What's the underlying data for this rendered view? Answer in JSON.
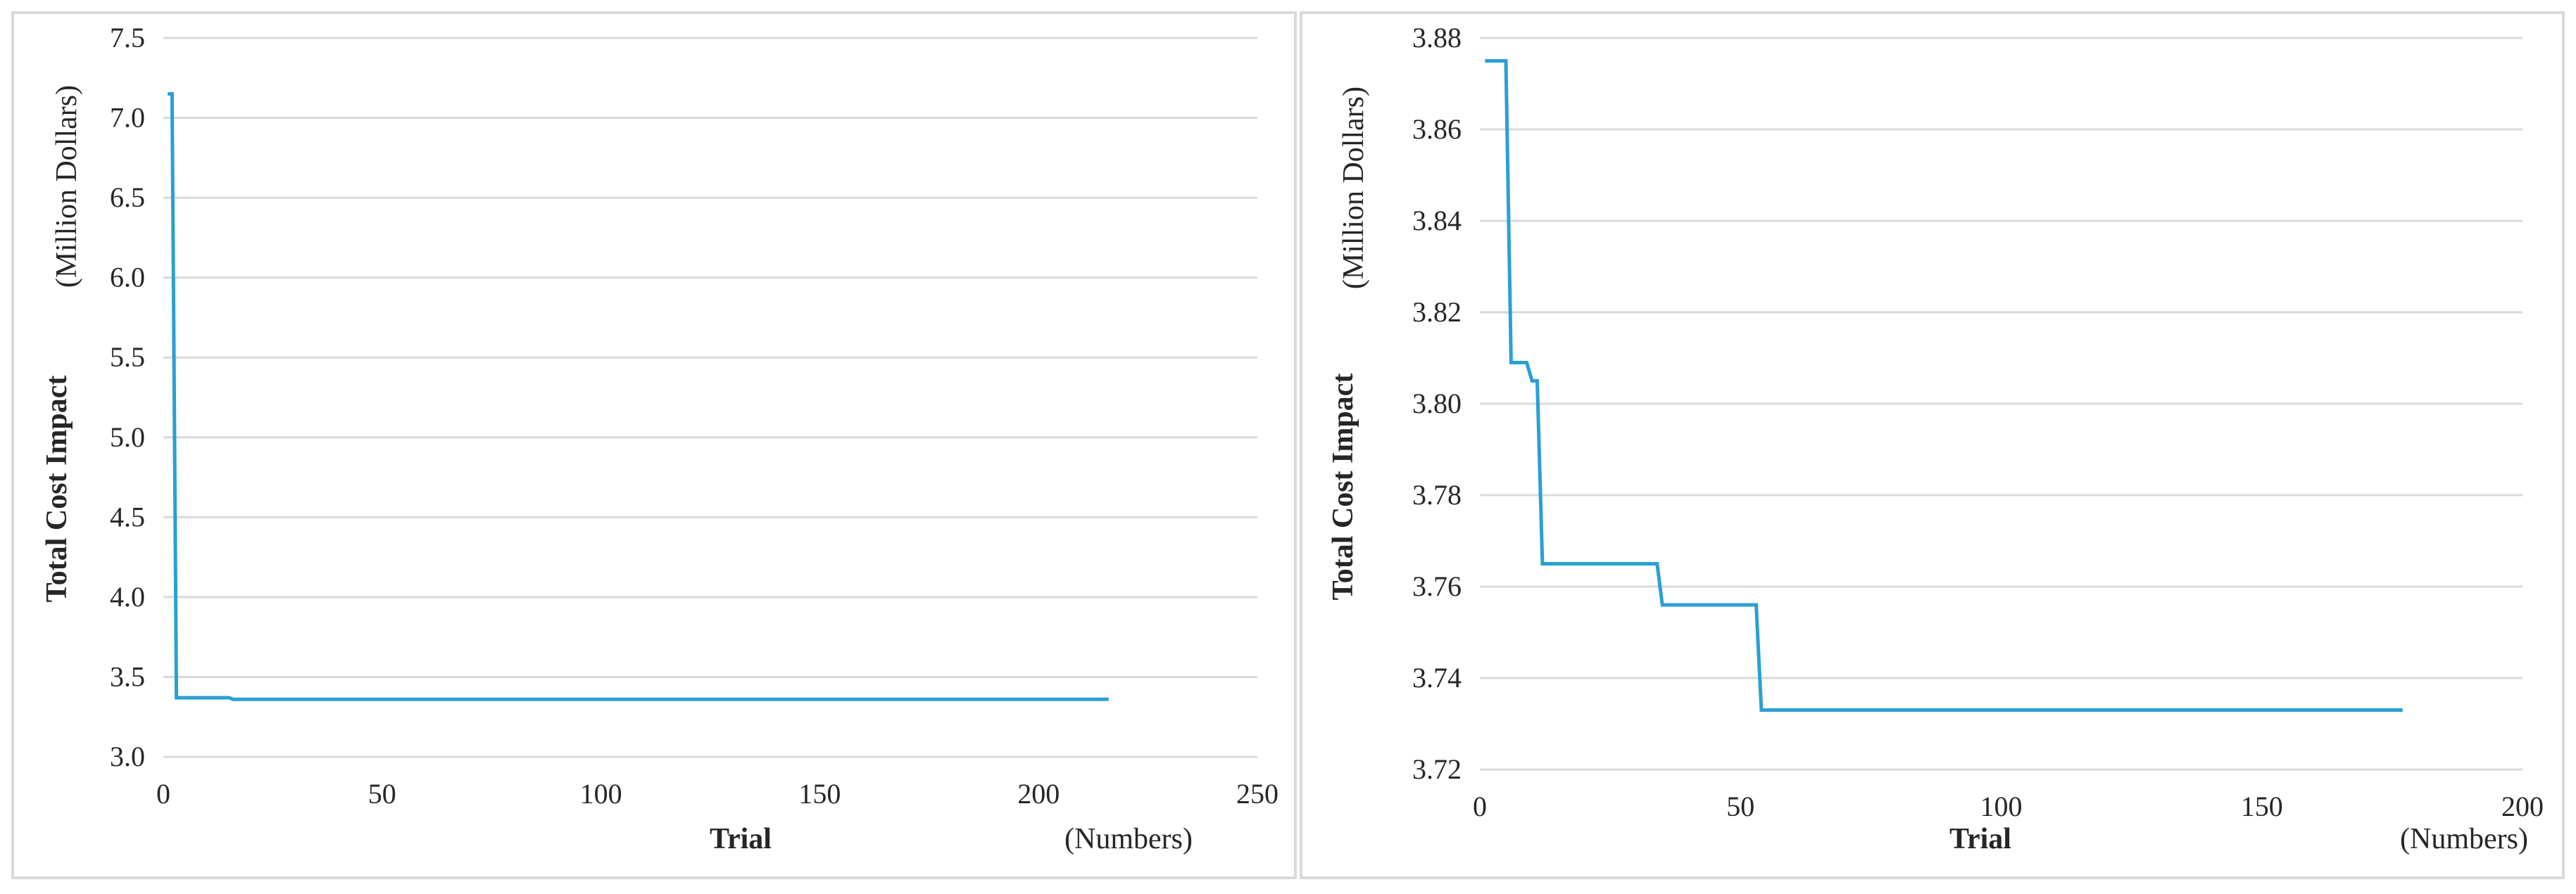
{
  "chart_data": [
    {
      "type": "line",
      "xlabel": "Trial",
      "xunit": "(Numbers)",
      "ylabel": "Total Cost Impact",
      "yunit": "(Million Dollars)",
      "xlim": [
        0,
        250
      ],
      "ylim": [
        3.0,
        7.5
      ],
      "xticks": [
        0,
        50,
        100,
        150,
        200,
        250
      ],
      "yticks": [
        "3.0",
        "3.5",
        "4.0",
        "4.5",
        "5.0",
        "5.5",
        "6.0",
        "6.5",
        "7.0",
        "7.5"
      ],
      "grid": true,
      "color": "#2a9fd6",
      "series": [
        {
          "x": [
            1,
            2,
            3,
            15,
            16,
            216
          ],
          "y": [
            7.15,
            7.15,
            3.37,
            3.37,
            3.36,
            3.36
          ]
        }
      ]
    },
    {
      "type": "line",
      "xlabel": "Trial",
      "xunit": "(Numbers)",
      "ylabel": "Total Cost Impact",
      "yunit": "(Million Dollars)",
      "xlim": [
        0,
        200
      ],
      "ylim": [
        3.72,
        3.88
      ],
      "xticks": [
        0,
        50,
        100,
        150,
        200
      ],
      "yticks": [
        "3.72",
        "3.74",
        "3.76",
        "3.78",
        "3.80",
        "3.82",
        "3.84",
        "3.86",
        "3.88"
      ],
      "grid": true,
      "color": "#2a9fd6",
      "series": [
        {
          "x": [
            1,
            5,
            6,
            9,
            10,
            10.5,
            11,
            12,
            34,
            35,
            53,
            54,
            177
          ],
          "y": [
            3.875,
            3.875,
            3.809,
            3.809,
            3.805,
            3.805,
            3.805,
            3.765,
            3.765,
            3.756,
            3.756,
            3.733,
            3.733
          ]
        }
      ]
    }
  ]
}
